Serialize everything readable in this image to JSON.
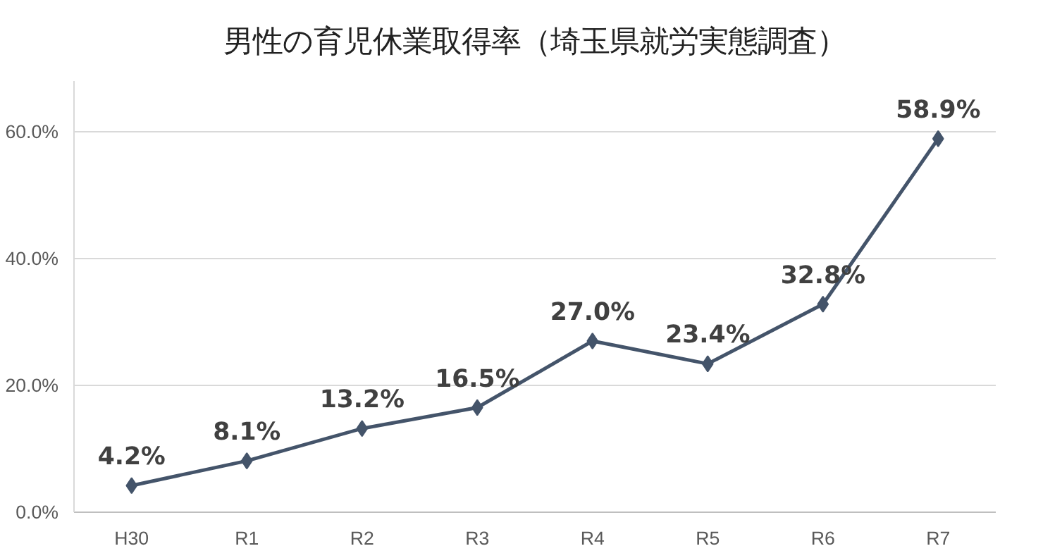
{
  "chart_data": {
    "type": "line",
    "title": "男性の育児休業取得率（埼玉県就労実態調査）",
    "categories": [
      "H30",
      "R1",
      "R2",
      "R3",
      "R4",
      "R5",
      "R6",
      "R7"
    ],
    "series": [
      {
        "color": "#44546a",
        "values": [
          4.2,
          8.1,
          13.2,
          16.5,
          27.0,
          23.4,
          32.8,
          58.9
        ],
        "value_labels": [
          "4.2%",
          "8.1%",
          "13.2%",
          "16.5%",
          "27.0%",
          "23.4%",
          "32.8%",
          "58.9%"
        ]
      }
    ],
    "ylim": [
      0,
      68
    ],
    "yticks": [
      {
        "value": 0,
        "label": "0.0%"
      },
      {
        "value": 20,
        "label": "20.0%"
      },
      {
        "value": 40,
        "label": "40.0%"
      },
      {
        "value": 60,
        "label": "60.0%"
      }
    ],
    "grid": "y",
    "marker": "diamond",
    "line_style": "solid"
  }
}
